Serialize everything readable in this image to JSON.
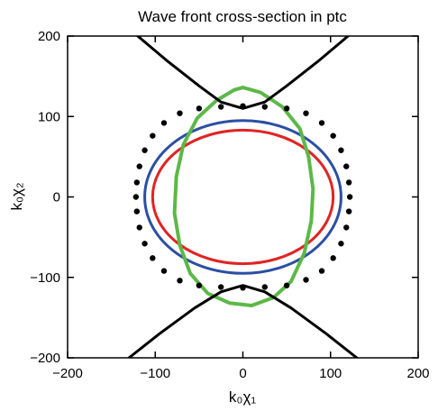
{
  "chart_data": {
    "type": "line",
    "title": "Wave front cross-section in ptc",
    "xlabel": "k₀χ₁",
    "ylabel": "k₀χ₂",
    "xlim": [
      -200,
      200
    ],
    "ylim": [
      -200,
      200
    ],
    "xticks": [
      -200,
      -100,
      0,
      100,
      200
    ],
    "yticks": [
      -200,
      -100,
      0,
      100,
      200
    ],
    "xtick_labels": [
      "−200",
      "−100",
      "0",
      "100",
      "200"
    ],
    "ytick_labels": [
      "−200",
      "−100",
      "0",
      "100",
      "200"
    ],
    "grid": false,
    "legend": "none",
    "colors": {
      "black": "#000000",
      "blue": "#2b4fa3",
      "red": "#e02424",
      "green": "#5cb848"
    },
    "series": [
      {
        "color": "#e02424",
        "style": "line",
        "shape": "ellipse",
        "center": [
          0,
          0
        ],
        "rx": 103,
        "ry": 83
      },
      {
        "color": "#2b4fa3",
        "style": "line",
        "shape": "ellipse",
        "center": [
          0,
          0
        ],
        "rx": 112,
        "ry": 95
      },
      {
        "color": "#5cb848",
        "style": "line",
        "shape": "tilted-ellipse",
        "points": [
          [
            0,
            136
          ],
          [
            20,
            130
          ],
          [
            45,
            112
          ],
          [
            65,
            85
          ],
          [
            75,
            50
          ],
          [
            80,
            10
          ],
          [
            78,
            -30
          ],
          [
            70,
            -70
          ],
          [
            55,
            -105
          ],
          [
            35,
            -125
          ],
          [
            10,
            -135
          ],
          [
            -15,
            -132
          ],
          [
            -40,
            -120
          ],
          [
            -60,
            -95
          ],
          [
            -72,
            -60
          ],
          [
            -78,
            -20
          ],
          [
            -76,
            25
          ],
          [
            -68,
            65
          ],
          [
            -52,
            98
          ],
          [
            -30,
            120
          ],
          [
            -10,
            133
          ],
          [
            0,
            136
          ]
        ]
      },
      {
        "color": "#000000",
        "style": "dots",
        "shape": "arc",
        "points": [
          [
            0,
            113
          ],
          [
            25,
            112
          ],
          [
            50,
            110
          ],
          [
            72,
            104
          ],
          [
            90,
            92
          ],
          [
            103,
            76
          ],
          [
            112,
            58
          ],
          [
            118,
            38
          ],
          [
            121,
            18
          ],
          [
            122,
            0
          ],
          [
            121,
            -18
          ],
          [
            118,
            -38
          ],
          [
            112,
            -58
          ],
          [
            103,
            -76
          ],
          [
            90,
            -92
          ],
          [
            72,
            -103
          ],
          [
            50,
            -110
          ],
          [
            25,
            -112
          ],
          [
            0,
            -113
          ],
          [
            -25,
            -112
          ],
          [
            -50,
            -110
          ],
          [
            -72,
            -104
          ],
          [
            -90,
            -92
          ],
          [
            -103,
            -76
          ],
          [
            -112,
            -58
          ],
          [
            -118,
            -38
          ],
          [
            -121,
            -18
          ],
          [
            -122,
            0
          ],
          [
            -121,
            18
          ],
          [
            -118,
            38
          ],
          [
            -112,
            58
          ],
          [
            -103,
            76
          ],
          [
            -90,
            92
          ],
          [
            -72,
            104
          ],
          [
            -50,
            110
          ],
          [
            -25,
            112
          ]
        ]
      },
      {
        "color": "#000000",
        "style": "line",
        "shape": "branch",
        "points": [
          [
            -120,
            200
          ],
          [
            -85,
            168
          ],
          [
            -50,
            138
          ],
          [
            -25,
            118
          ],
          [
            0,
            110
          ],
          [
            25,
            118
          ],
          [
            50,
            138
          ],
          [
            85,
            168
          ],
          [
            120,
            200
          ]
        ]
      },
      {
        "color": "#000000",
        "style": "line",
        "shape": "branch",
        "points": [
          [
            -130,
            -200
          ],
          [
            -95,
            -170
          ],
          [
            -55,
            -138
          ],
          [
            -25,
            -118
          ],
          [
            0,
            -110
          ],
          [
            25,
            -118
          ],
          [
            55,
            -138
          ],
          [
            95,
            -170
          ],
          [
            130,
            -200
          ]
        ]
      }
    ]
  }
}
